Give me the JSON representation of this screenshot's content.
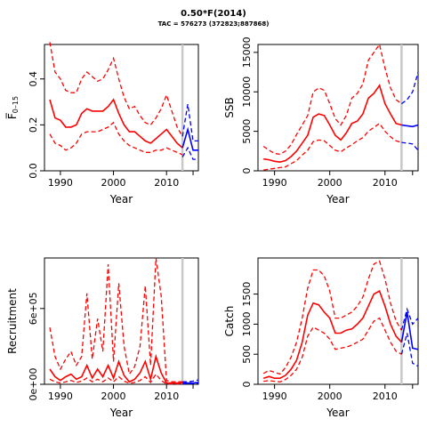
{
  "header": {
    "title": "0.50*F(2014)",
    "subtitle": "TAC = 576273 (372823;887868)"
  },
  "style": {
    "history_color": "#ff0000",
    "forecast_color": "#0000ff",
    "marker_color": "#c8c8c8"
  },
  "chart_data": [
    {
      "id": "fbar",
      "type": "line",
      "xlabel": "Year",
      "ylabel": "F̅",
      "ylabel_sub": "0–15",
      "xlim": [
        1987,
        2016
      ],
      "ylim": [
        0,
        0.55
      ],
      "xticks": [
        1990,
        2000,
        2010
      ],
      "yticks": [
        0,
        0.2,
        0.4
      ],
      "ytick_labels": [
        "0.0",
        "0.2",
        "0.4"
      ],
      "marker_year": 2013,
      "years": [
        1988,
        1989,
        1990,
        1991,
        1992,
        1993,
        1994,
        1995,
        1996,
        1997,
        1998,
        1999,
        2000,
        2001,
        2002,
        2003,
        2004,
        2005,
        2006,
        2007,
        2008,
        2009,
        2010,
        2011,
        2012,
        2013
      ],
      "median": [
        0.31,
        0.23,
        0.22,
        0.19,
        0.19,
        0.2,
        0.25,
        0.27,
        0.26,
        0.26,
        0.26,
        0.28,
        0.31,
        0.25,
        0.2,
        0.17,
        0.17,
        0.15,
        0.13,
        0.12,
        0.14,
        0.16,
        0.18,
        0.15,
        0.12,
        0.1
      ],
      "lower": [
        0.16,
        0.12,
        0.11,
        0.09,
        0.1,
        0.12,
        0.16,
        0.17,
        0.17,
        0.17,
        0.18,
        0.19,
        0.21,
        0.16,
        0.13,
        0.11,
        0.1,
        0.09,
        0.08,
        0.08,
        0.09,
        0.09,
        0.1,
        0.09,
        0.08,
        0.07
      ],
      "upper": [
        0.56,
        0.43,
        0.4,
        0.35,
        0.34,
        0.34,
        0.4,
        0.43,
        0.41,
        0.39,
        0.4,
        0.44,
        0.49,
        0.4,
        0.32,
        0.27,
        0.28,
        0.24,
        0.21,
        0.2,
        0.23,
        0.27,
        0.33,
        0.26,
        0.19,
        0.15
      ],
      "forecast_years": [
        2013,
        2014,
        2015,
        2016
      ],
      "forecast_median": [
        0.1,
        0.18,
        0.09,
        0.09
      ],
      "forecast_lower": [
        0.06,
        0.1,
        0.05,
        0.05
      ],
      "forecast_upper": [
        0.15,
        0.29,
        0.13,
        0.13
      ]
    },
    {
      "id": "ssb",
      "type": "line",
      "xlabel": "Year",
      "ylabel": "SSB",
      "xlim": [
        1987,
        2016
      ],
      "ylim": [
        0,
        16000
      ],
      "xticks": [
        1990,
        2000,
        2010
      ],
      "yticks": [
        0,
        5000,
        10000,
        15000
      ],
      "ytick_labels": [
        "0",
        "5000",
        "10000",
        "15000"
      ],
      "marker_year": 2013,
      "years": [
        1988,
        1989,
        1990,
        1991,
        1992,
        1993,
        1994,
        1995,
        1996,
        1997,
        1998,
        1999,
        2000,
        2001,
        2002,
        2003,
        2004,
        2005,
        2006,
        2007,
        2008,
        2009,
        2010,
        2011,
        2012,
        2013
      ],
      "median": [
        1500,
        1400,
        1200,
        1100,
        1300,
        1800,
        2500,
        3500,
        4500,
        6800,
        7200,
        7000,
        5800,
        4500,
        3900,
        4800,
        6000,
        6300,
        7200,
        9200,
        9800,
        10800,
        8500,
        7200,
        6000,
        5800
      ],
      "lower": [
        100,
        200,
        300,
        400,
        500,
        900,
        1300,
        2000,
        2600,
        3700,
        3900,
        3800,
        3200,
        2600,
        2400,
        2900,
        3300,
        3800,
        4200,
        5000,
        5500,
        6000,
        5000,
        4300,
        3800,
        3600
      ],
      "upper": [
        3100,
        2600,
        2200,
        2100,
        2500,
        3300,
        4600,
        5800,
        7000,
        10000,
        10500,
        10200,
        8500,
        6600,
        5800,
        7000,
        9200,
        9800,
        11000,
        14000,
        15000,
        16000,
        13000,
        10500,
        9000,
        8500
      ],
      "forecast_years": [
        2013,
        2014,
        2015,
        2016
      ],
      "forecast_median": [
        5800,
        5700,
        5600,
        5800
      ],
      "forecast_lower": [
        3600,
        3500,
        3400,
        2600
      ],
      "forecast_upper": [
        8500,
        9000,
        10000,
        12500
      ]
    },
    {
      "id": "recruitment",
      "type": "line",
      "xlabel": "Year",
      "ylabel": "Recruitment",
      "xlim": [
        1987,
        2016
      ],
      "ylim": [
        0,
        1000000
      ],
      "xticks": [
        1990,
        2000,
        2010
      ],
      "yticks": [
        0,
        600000
      ],
      "ytick_labels": [
        "0e+00",
        "6e+05"
      ],
      "marker_year": 2013,
      "years": [
        1988,
        1989,
        1990,
        1991,
        1992,
        1993,
        1994,
        1995,
        1996,
        1997,
        1998,
        1999,
        2000,
        2001,
        2002,
        2003,
        2004,
        2005,
        2006,
        2007,
        2008,
        2009,
        2010,
        2011,
        2012,
        2013
      ],
      "median": [
        120000,
        60000,
        30000,
        60000,
        80000,
        40000,
        60000,
        150000,
        50000,
        120000,
        60000,
        150000,
        50000,
        180000,
        70000,
        20000,
        40000,
        90000,
        180000,
        40000,
        220000,
        90000,
        10000,
        10000,
        10000,
        10000
      ],
      "lower": [
        40000,
        20000,
        10000,
        20000,
        30000,
        15000,
        25000,
        50000,
        20000,
        40000,
        20000,
        50000,
        20000,
        60000,
        25000,
        8000,
        15000,
        30000,
        60000,
        15000,
        80000,
        30000,
        3000,
        3000,
        3000,
        3000
      ],
      "upper": [
        450000,
        220000,
        120000,
        200000,
        260000,
        150000,
        220000,
        720000,
        200000,
        520000,
        260000,
        950000,
        180000,
        800000,
        300000,
        80000,
        140000,
        300000,
        780000,
        150000,
        1000000,
        700000,
        30000,
        20000,
        20000,
        20000
      ],
      "forecast_years": [
        2013,
        2014,
        2015,
        2016
      ],
      "forecast_median": [
        10000,
        10000,
        10000,
        15000
      ],
      "forecast_lower": [
        3000,
        5000,
        5000,
        8000
      ],
      "forecast_upper": [
        20000,
        20000,
        25000,
        35000
      ]
    },
    {
      "id": "catch",
      "type": "line",
      "xlabel": "Year",
      "ylabel": "Catch",
      "xlim": [
        1987,
        2016
      ],
      "ylim": [
        0,
        2100
      ],
      "xticks": [
        1990,
        2000,
        2010
      ],
      "yticks": [
        0,
        500,
        1000,
        1500
      ],
      "ytick_labels": [
        "0",
        "500",
        "1000",
        "1500"
      ],
      "marker_year": 2013,
      "years": [
        1988,
        1989,
        1990,
        1991,
        1992,
        1993,
        1994,
        1995,
        1996,
        1997,
        1998,
        1999,
        2000,
        2001,
        2002,
        2003,
        2004,
        2005,
        2006,
        2007,
        2008,
        2009,
        2010,
        2011,
        2012,
        2013
      ],
      "median": [
        100,
        130,
        100,
        100,
        150,
        250,
        400,
        700,
        1150,
        1350,
        1320,
        1200,
        1100,
        850,
        850,
        900,
        920,
        1000,
        1100,
        1300,
        1500,
        1550,
        1300,
        1000,
        800,
        700
      ],
      "lower": [
        50,
        60,
        50,
        40,
        80,
        150,
        250,
        450,
        800,
        950,
        900,
        850,
        750,
        580,
        600,
        620,
        650,
        700,
        750,
        900,
        1050,
        1100,
        900,
        700,
        550,
        500
      ],
      "upper": [
        180,
        230,
        200,
        170,
        280,
        450,
        700,
        1100,
        1600,
        1900,
        1900,
        1800,
        1550,
        1100,
        1100,
        1150,
        1200,
        1300,
        1450,
        1750,
        2000,
        2050,
        1750,
        1350,
        1050,
        900
      ],
      "forecast_years": [
        2013,
        2014,
        2015,
        2016
      ],
      "forecast_median": [
        700,
        1200,
        600,
        580
      ],
      "forecast_lower": [
        500,
        850,
        350,
        300
      ],
      "forecast_upper": [
        900,
        1250,
        1000,
        1100
      ]
    }
  ]
}
